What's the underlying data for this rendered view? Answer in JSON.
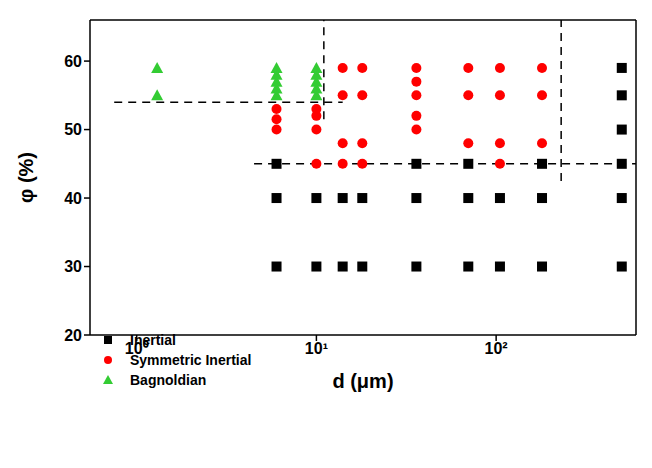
{
  "chart_data": {
    "type": "scatter",
    "xlabel": "d (μm)",
    "ylabel": "φ (%)",
    "log": "x",
    "grid": false,
    "legend": "lower left",
    "xlim": [
      0.55,
      600
    ],
    "ylim": [
      20,
      66
    ],
    "xticks": [
      {
        "value": 1,
        "label": "10⁰"
      },
      {
        "value": 10,
        "label": "10¹"
      },
      {
        "value": 100,
        "label": "10²"
      }
    ],
    "yticks": [
      20,
      30,
      40,
      50,
      60
    ],
    "series": [
      {
        "name": "Inertial",
        "color": "#000000",
        "marker": "square",
        "x": [
          6,
          10,
          14,
          18,
          36,
          70,
          105,
          180,
          500,
          6,
          10,
          14,
          18,
          36,
          70,
          105,
          180,
          500,
          6,
          36,
          70,
          180,
          500,
          500,
          500,
          500
        ],
        "values": [
          30,
          30,
          30,
          30,
          30,
          30,
          30,
          30,
          30,
          40,
          40,
          40,
          40,
          40,
          40,
          40,
          40,
          40,
          45,
          45,
          45,
          45,
          45,
          50,
          55,
          59
        ]
      },
      {
        "name": "Symmetric Inertial",
        "color": "#ff0000",
        "marker": "circle",
        "x": [
          6,
          6,
          6,
          10,
          10,
          10,
          10,
          14,
          14,
          14,
          14,
          18,
          18,
          18,
          18,
          36,
          36,
          36,
          36,
          36,
          70,
          70,
          70,
          105,
          105,
          105,
          105,
          180,
          180,
          180
        ],
        "values": [
          50,
          51.5,
          53,
          45,
          50,
          52,
          53,
          45,
          48,
          55,
          59,
          45,
          48,
          55,
          59,
          50,
          52,
          55,
          57,
          59,
          48,
          55,
          59,
          45,
          48,
          55,
          59,
          48,
          55,
          59
        ]
      },
      {
        "name": "Bagnoldian",
        "color": "#33cc33",
        "marker": "triangle",
        "x": [
          1.3,
          1.3,
          6,
          6,
          6,
          6,
          6,
          10,
          10,
          10,
          10,
          10
        ],
        "values": [
          55,
          59,
          55,
          56,
          57,
          58,
          59,
          55,
          56,
          57,
          58,
          59
        ]
      }
    ],
    "boundaries": [
      {
        "x": [
          11,
          11
        ],
        "y": [
          51.5,
          66
        ]
      },
      {
        "x": [
          0.75,
          14
        ],
        "y": [
          54,
          54
        ]
      },
      {
        "x": [
          4.5,
          600
        ],
        "y": [
          45,
          45
        ]
      },
      {
        "x": [
          230,
          230
        ],
        "y": [
          42.5,
          66
        ]
      }
    ],
    "line_style": "dashed"
  }
}
